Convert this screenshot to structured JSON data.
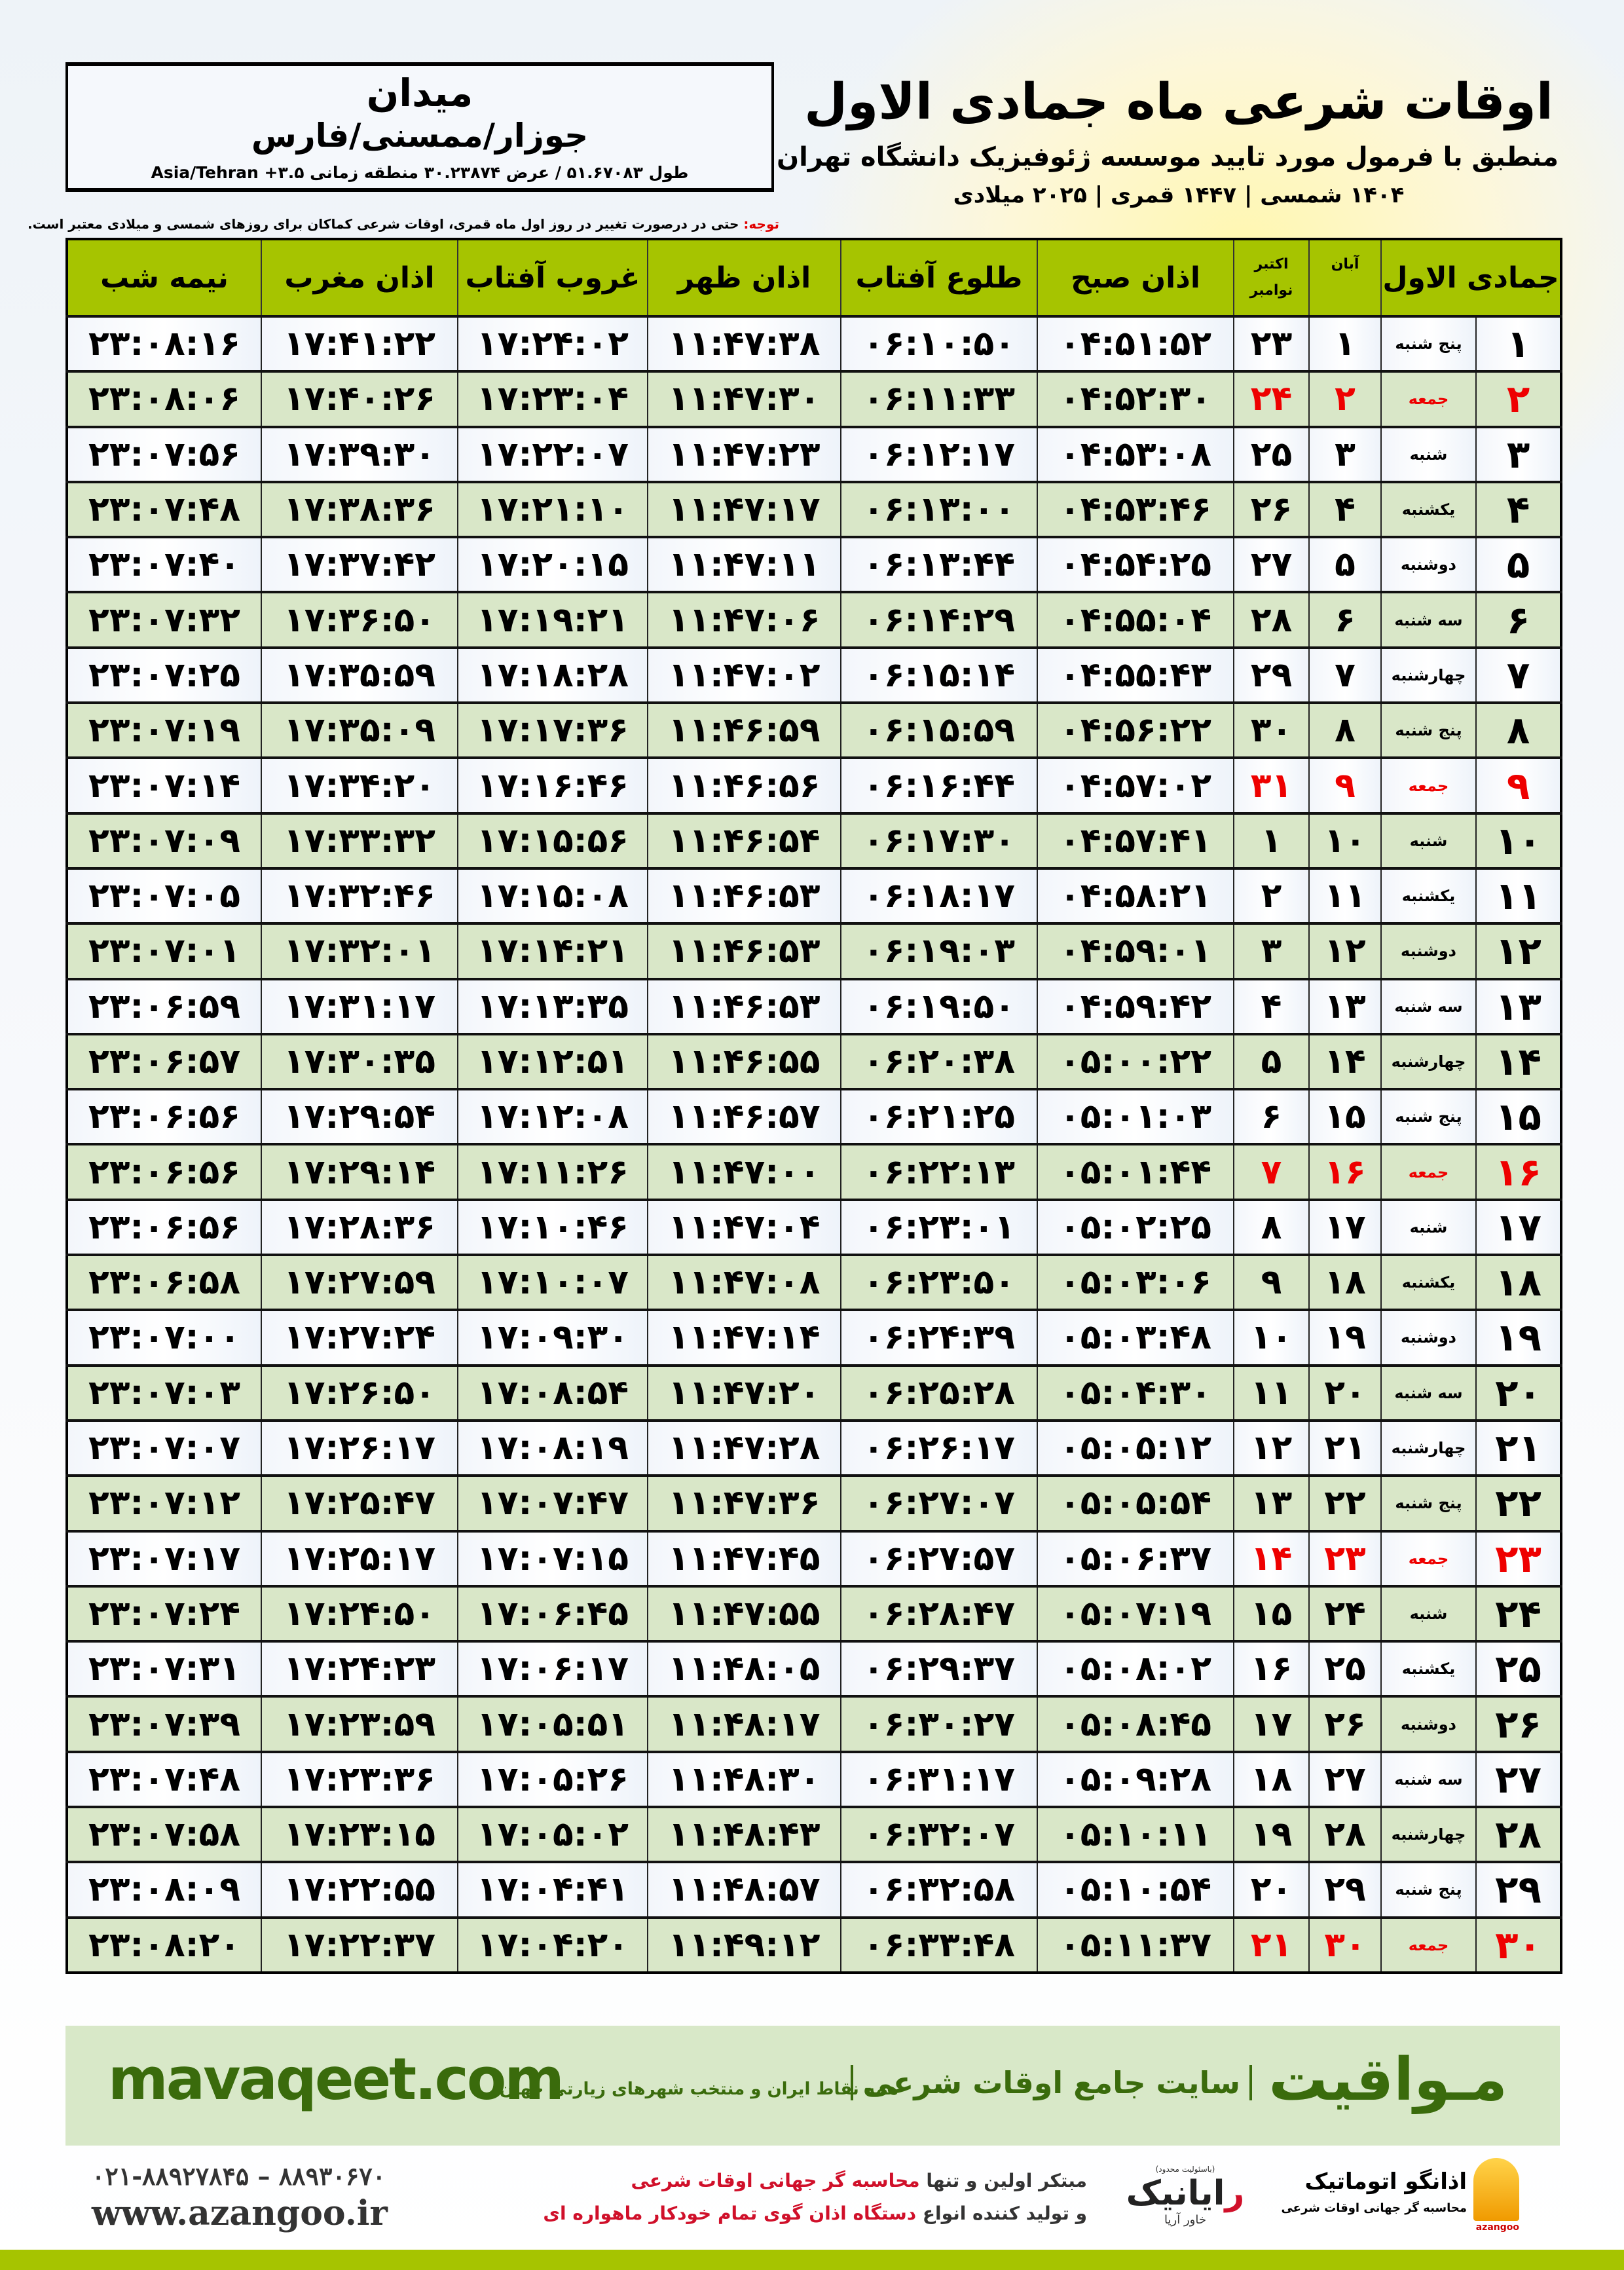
{
  "info": {
    "city": "میدان",
    "region": "جوزار/ممسنی/فارس",
    "coords": "طول ۵۱.۶۷۰۸۳ / عرض ۳۰.۲۳۸۷۴ منطقه زمانی ۳.۵+ Asia/Tehran"
  },
  "title": {
    "main": "اوقات شرعی ماه جمادی الاول",
    "subtitle": "منطبق با فرمول مورد تایید موسسه ژئوفیزیک دانشگاه تهران",
    "years": "۱۴۰۴ شمسی | ۱۴۴۷ قمری | ۲۰۲۵ میلادی"
  },
  "note": {
    "label": "توجه:",
    "text": " حتی در درصورت تغییر در روز اول ماه قمری، اوقات شرعی کماکان برای روزهای شمسی و میلادی معتبر است."
  },
  "table": {
    "headers": {
      "hijri": "جمادی الاول",
      "aban": "آبان",
      "oct": "اکتبر",
      "nov": "نوامبر",
      "fajr": "اذان صبح",
      "sunrise": "طلوع آفتاب",
      "dhuhr": "اذان ظهر",
      "sunset": "غروب آفتاب",
      "maghrib": "اذان مغرب",
      "midnight": "نیمه شب"
    },
    "columns": [
      "hijri_day",
      "weekday",
      "aban",
      "gregorian",
      "fajr",
      "sunrise",
      "dhuhr",
      "sunset",
      "maghrib",
      "midnight"
    ],
    "rows": [
      [
        "۱",
        "پنج شنبه",
        "۱",
        "۲۳",
        "۰۴:۵۱:۵۲",
        "۰۶:۱۰:۵۰",
        "۱۱:۴۷:۳۸",
        "۱۷:۲۴:۰۲",
        "۱۷:۴۱:۲۲",
        "۲۳:۰۸:۱۶"
      ],
      [
        "۲",
        "جمعه",
        "۲",
        "۲۴",
        "۰۴:۵۲:۳۰",
        "۰۶:۱۱:۳۳",
        "۱۱:۴۷:۳۰",
        "۱۷:۲۳:۰۴",
        "۱۷:۴۰:۲۶",
        "۲۳:۰۸:۰۶"
      ],
      [
        "۳",
        "شنبه",
        "۳",
        "۲۵",
        "۰۴:۵۳:۰۸",
        "۰۶:۱۲:۱۷",
        "۱۱:۴۷:۲۳",
        "۱۷:۲۲:۰۷",
        "۱۷:۳۹:۳۰",
        "۲۳:۰۷:۵۶"
      ],
      [
        "۴",
        "یکشنبه",
        "۴",
        "۲۶",
        "۰۴:۵۳:۴۶",
        "۰۶:۱۳:۰۰",
        "۱۱:۴۷:۱۷",
        "۱۷:۲۱:۱۰",
        "۱۷:۳۸:۳۶",
        "۲۳:۰۷:۴۸"
      ],
      [
        "۵",
        "دوشنبه",
        "۵",
        "۲۷",
        "۰۴:۵۴:۲۵",
        "۰۶:۱۳:۴۴",
        "۱۱:۴۷:۱۱",
        "۱۷:۲۰:۱۵",
        "۱۷:۳۷:۴۲",
        "۲۳:۰۷:۴۰"
      ],
      [
        "۶",
        "سه شنبه",
        "۶",
        "۲۸",
        "۰۴:۵۵:۰۴",
        "۰۶:۱۴:۲۹",
        "۱۱:۴۷:۰۶",
        "۱۷:۱۹:۲۱",
        "۱۷:۳۶:۵۰",
        "۲۳:۰۷:۳۲"
      ],
      [
        "۷",
        "چهارشنبه",
        "۷",
        "۲۹",
        "۰۴:۵۵:۴۳",
        "۰۶:۱۵:۱۴",
        "۱۱:۴۷:۰۲",
        "۱۷:۱۸:۲۸",
        "۱۷:۳۵:۵۹",
        "۲۳:۰۷:۲۵"
      ],
      [
        "۸",
        "پنج شنبه",
        "۸",
        "۳۰",
        "۰۴:۵۶:۲۲",
        "۰۶:۱۵:۵۹",
        "۱۱:۴۶:۵۹",
        "۱۷:۱۷:۳۶",
        "۱۷:۳۵:۰۹",
        "۲۳:۰۷:۱۹"
      ],
      [
        "۹",
        "جمعه",
        "۹",
        "۳۱",
        "۰۴:۵۷:۰۲",
        "۰۶:۱۶:۴۴",
        "۱۱:۴۶:۵۶",
        "۱۷:۱۶:۴۶",
        "۱۷:۳۴:۲۰",
        "۲۳:۰۷:۱۴"
      ],
      [
        "۱۰",
        "شنبه",
        "۱۰",
        "۱",
        "۰۴:۵۷:۴۱",
        "۰۶:۱۷:۳۰",
        "۱۱:۴۶:۵۴",
        "۱۷:۱۵:۵۶",
        "۱۷:۳۳:۳۲",
        "۲۳:۰۷:۰۹"
      ],
      [
        "۱۱",
        "یکشنبه",
        "۱۱",
        "۲",
        "۰۴:۵۸:۲۱",
        "۰۶:۱۸:۱۷",
        "۱۱:۴۶:۵۳",
        "۱۷:۱۵:۰۸",
        "۱۷:۳۲:۴۶",
        "۲۳:۰۷:۰۵"
      ],
      [
        "۱۲",
        "دوشنبه",
        "۱۲",
        "۳",
        "۰۴:۵۹:۰۱",
        "۰۶:۱۹:۰۳",
        "۱۱:۴۶:۵۳",
        "۱۷:۱۴:۲۱",
        "۱۷:۳۲:۰۱",
        "۲۳:۰۷:۰۱"
      ],
      [
        "۱۳",
        "سه شنبه",
        "۱۳",
        "۴",
        "۰۴:۵۹:۴۲",
        "۰۶:۱۹:۵۰",
        "۱۱:۴۶:۵۳",
        "۱۷:۱۳:۳۵",
        "۱۷:۳۱:۱۷",
        "۲۳:۰۶:۵۹"
      ],
      [
        "۱۴",
        "چهارشنبه",
        "۱۴",
        "۵",
        "۰۵:۰۰:۲۲",
        "۰۶:۲۰:۳۸",
        "۱۱:۴۶:۵۵",
        "۱۷:۱۲:۵۱",
        "۱۷:۳۰:۳۵",
        "۲۳:۰۶:۵۷"
      ],
      [
        "۱۵",
        "پنج شنبه",
        "۱۵",
        "۶",
        "۰۵:۰۱:۰۳",
        "۰۶:۲۱:۲۵",
        "۱۱:۴۶:۵۷",
        "۱۷:۱۲:۰۸",
        "۱۷:۲۹:۵۴",
        "۲۳:۰۶:۵۶"
      ],
      [
        "۱۶",
        "جمعه",
        "۱۶",
        "۷",
        "۰۵:۰۱:۴۴",
        "۰۶:۲۲:۱۳",
        "۱۱:۴۷:۰۰",
        "۱۷:۱۱:۲۶",
        "۱۷:۲۹:۱۴",
        "۲۳:۰۶:۵۶"
      ],
      [
        "۱۷",
        "شنبه",
        "۱۷",
        "۸",
        "۰۵:۰۲:۲۵",
        "۰۶:۲۳:۰۱",
        "۱۱:۴۷:۰۴",
        "۱۷:۱۰:۴۶",
        "۱۷:۲۸:۳۶",
        "۲۳:۰۶:۵۶"
      ],
      [
        "۱۸",
        "یکشنبه",
        "۱۸",
        "۹",
        "۰۵:۰۳:۰۶",
        "۰۶:۲۳:۵۰",
        "۱۱:۴۷:۰۸",
        "۱۷:۱۰:۰۷",
        "۱۷:۲۷:۵۹",
        "۲۳:۰۶:۵۸"
      ],
      [
        "۱۹",
        "دوشنبه",
        "۱۹",
        "۱۰",
        "۰۵:۰۳:۴۸",
        "۰۶:۲۴:۳۹",
        "۱۱:۴۷:۱۴",
        "۱۷:۰۹:۳۰",
        "۱۷:۲۷:۲۴",
        "۲۳:۰۷:۰۰"
      ],
      [
        "۲۰",
        "سه شنبه",
        "۲۰",
        "۱۱",
        "۰۵:۰۴:۳۰",
        "۰۶:۲۵:۲۸",
        "۱۱:۴۷:۲۰",
        "۱۷:۰۸:۵۴",
        "۱۷:۲۶:۵۰",
        "۲۳:۰۷:۰۳"
      ],
      [
        "۲۱",
        "چهارشنبه",
        "۲۱",
        "۱۲",
        "۰۵:۰۵:۱۲",
        "۰۶:۲۶:۱۷",
        "۱۱:۴۷:۲۸",
        "۱۷:۰۸:۱۹",
        "۱۷:۲۶:۱۷",
        "۲۳:۰۷:۰۷"
      ],
      [
        "۲۲",
        "پنج شنبه",
        "۲۲",
        "۱۳",
        "۰۵:۰۵:۵۴",
        "۰۶:۲۷:۰۷",
        "۱۱:۴۷:۳۶",
        "۱۷:۰۷:۴۷",
        "۱۷:۲۵:۴۷",
        "۲۳:۰۷:۱۲"
      ],
      [
        "۲۳",
        "جمعه",
        "۲۳",
        "۱۴",
        "۰۵:۰۶:۳۷",
        "۰۶:۲۷:۵۷",
        "۱۱:۴۷:۴۵",
        "۱۷:۰۷:۱۵",
        "۱۷:۲۵:۱۷",
        "۲۳:۰۷:۱۷"
      ],
      [
        "۲۴",
        "شنبه",
        "۲۴",
        "۱۵",
        "۰۵:۰۷:۱۹",
        "۰۶:۲۸:۴۷",
        "۱۱:۴۷:۵۵",
        "۱۷:۰۶:۴۵",
        "۱۷:۲۴:۵۰",
        "۲۳:۰۷:۲۴"
      ],
      [
        "۲۵",
        "یکشنبه",
        "۲۵",
        "۱۶",
        "۰۵:۰۸:۰۲",
        "۰۶:۲۹:۳۷",
        "۱۱:۴۸:۰۵",
        "۱۷:۰۶:۱۷",
        "۱۷:۲۴:۲۳",
        "۲۳:۰۷:۳۱"
      ],
      [
        "۲۶",
        "دوشنبه",
        "۲۶",
        "۱۷",
        "۰۵:۰۸:۴۵",
        "۰۶:۳۰:۲۷",
        "۱۱:۴۸:۱۷",
        "۱۷:۰۵:۵۱",
        "۱۷:۲۳:۵۹",
        "۲۳:۰۷:۳۹"
      ],
      [
        "۲۷",
        "سه شنبه",
        "۲۷",
        "۱۸",
        "۰۵:۰۹:۲۸",
        "۰۶:۳۱:۱۷",
        "۱۱:۴۸:۳۰",
        "۱۷:۰۵:۲۶",
        "۱۷:۲۳:۳۶",
        "۲۳:۰۷:۴۸"
      ],
      [
        "۲۸",
        "چهارشنبه",
        "۲۸",
        "۱۹",
        "۰۵:۱۰:۱۱",
        "۰۶:۳۲:۰۷",
        "۱۱:۴۸:۴۳",
        "۱۷:۰۵:۰۲",
        "۱۷:۲۳:۱۵",
        "۲۳:۰۷:۵۸"
      ],
      [
        "۲۹",
        "پنج شنبه",
        "۲۹",
        "۲۰",
        "۰۵:۱۰:۵۴",
        "۰۶:۳۲:۵۸",
        "۱۱:۴۸:۵۷",
        "۱۷:۰۴:۴۱",
        "۱۷:۲۲:۵۵",
        "۲۳:۰۸:۰۹"
      ],
      [
        "۳۰",
        "جمعه",
        "۳۰",
        "۲۱",
        "۰۵:۱۱:۳۷",
        "۰۶:۳۳:۴۸",
        "۱۱:۴۹:۱۲",
        "۱۷:۰۴:۲۰",
        "۱۷:۲۲:۳۷",
        "۲۳:۰۸:۲۰"
      ]
    ],
    "friday_label": "جمعه",
    "friday_color": "#ee0000"
  },
  "footer": {
    "brand": "مـواقیت",
    "tagline": "سایت جامع اوقات شرعی",
    "tagline2": "همه نقاط ایران و منتخب شهرهای زیارتی جهان",
    "site": "mavaqeet.com",
    "phone": "۰۲۱-۸۸۹۲۷۸۴۵ – ۸۸۹۳۰۶۷۰",
    "www": "www.azangoo.ir",
    "promo1_a": "مبتکر اولین و تنها ",
    "promo1_b": "محاسبه گر جهانی اوقات شرعی",
    "promo2_a": "و تولید کننده انواع ",
    "promo2_b": "دستگاه اذان گوی تمام خودکار ماهواره ای",
    "rayanik_small": "(باسئولیت محدود)",
    "rayanik_r": "ر",
    "rayanik_name": "ایانیک",
    "rayanik_sub": "خاور آریا",
    "azangoo_name": "اذانگو اتوماتیک",
    "azangoo_sub": "محاسبه گر جهانی اوقات شرعی",
    "azangoo_latin": "azangoo"
  },
  "colors": {
    "header_green": "#a6c400",
    "row_green": "#d9e7c8",
    "footer_green": "#d8e8c8",
    "brand_green": "#3a6b0c",
    "accent_red": "#ee0000"
  }
}
